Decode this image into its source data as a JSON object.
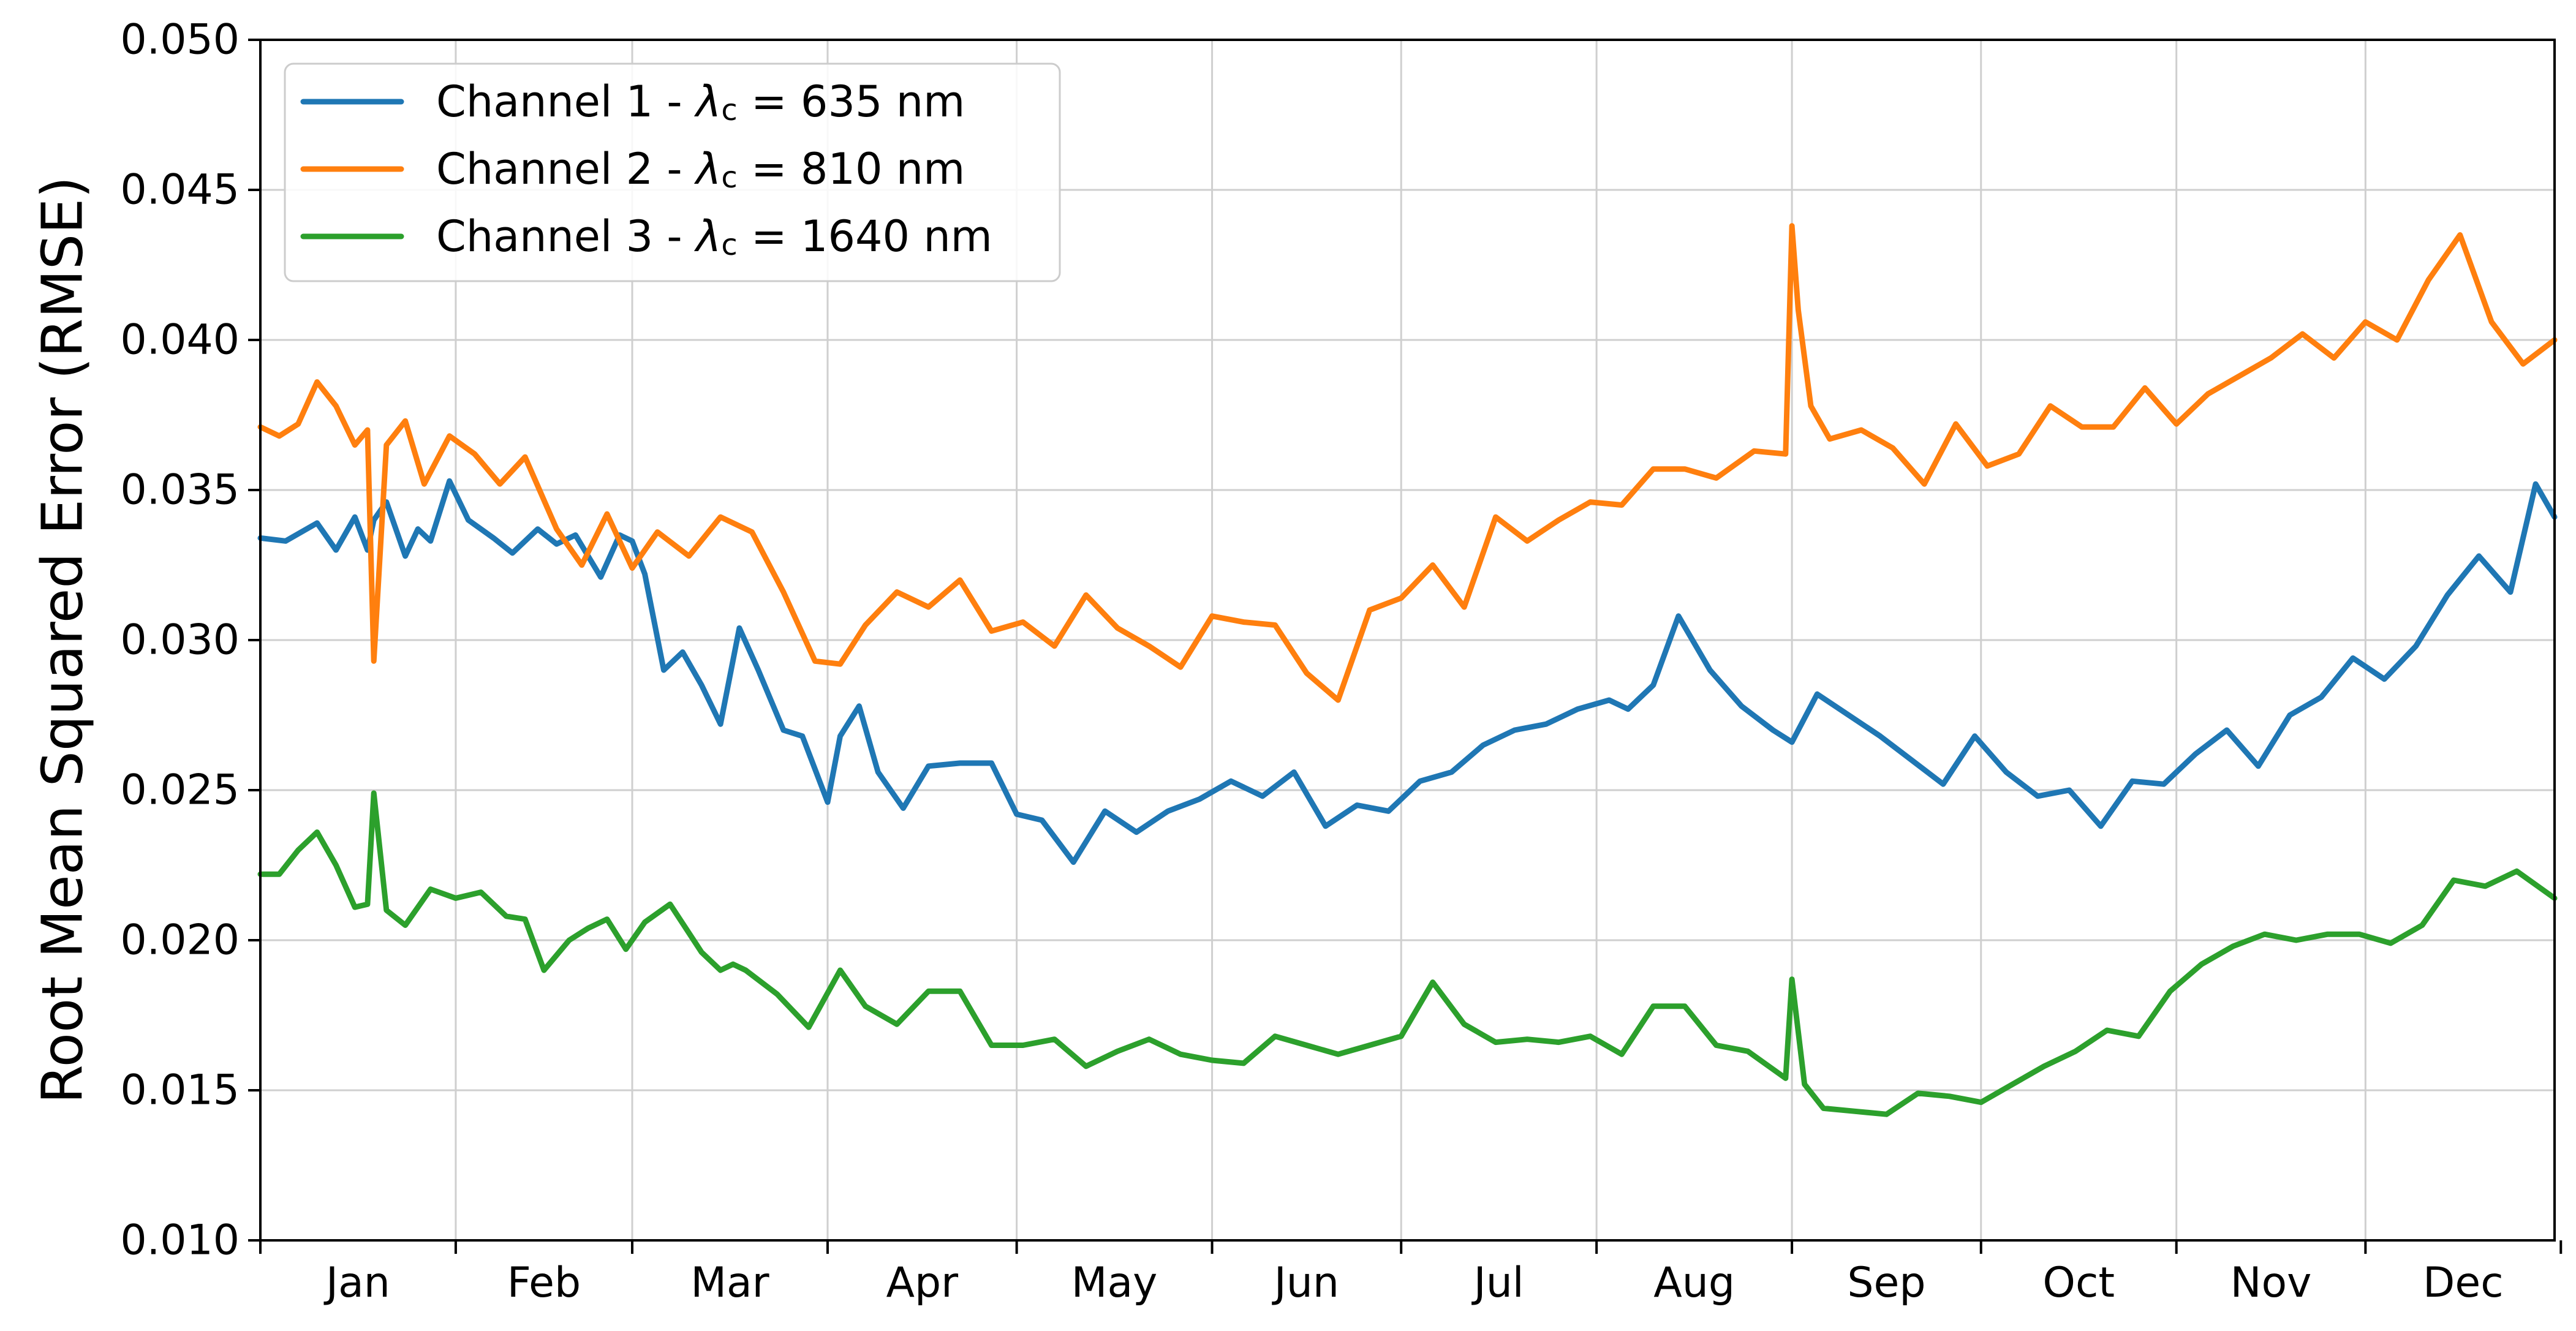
{
  "chart_data": {
    "type": "line",
    "ylabel": "Root Mean Squared Error (RMSE)",
    "xlabel": "",
    "ylim": [
      0.01,
      0.05
    ],
    "xlim": [
      "Jan 01",
      "Dec 31"
    ],
    "x_tick_labels": [
      "Jan",
      "Feb",
      "Mar",
      "Apr",
      "May",
      "Jun",
      "Jul",
      "Aug",
      "Sep",
      "Oct",
      "Nov",
      "Dec"
    ],
    "y_ticks": [
      0.01,
      0.015,
      0.02,
      0.025,
      0.03,
      0.035,
      0.04,
      0.045,
      0.05
    ],
    "y_tick_labels": [
      "0.010",
      "0.015",
      "0.020",
      "0.025",
      "0.030",
      "0.035",
      "0.040",
      "0.045",
      "0.050"
    ],
    "grid": true,
    "legend_position": "top-left",
    "series": [
      {
        "name": "Channel 1 - λc = 635 nm",
        "legend_prefix": "Channel 1 - ",
        "legend_suffix": " = 635 nm",
        "color": "#1f77b4",
        "x": [
          "Jan 01",
          "Jan 05",
          "Jan 10",
          "Jan 13",
          "Jan 16",
          "Jan 18",
          "Jan 19",
          "Jan 21",
          "Jan 24",
          "Jan 26",
          "Jan 28",
          "Jan 31",
          "Feb 03",
          "Feb 07",
          "Feb 10",
          "Feb 14",
          "Feb 17",
          "Feb 20",
          "Feb 24",
          "Feb 27",
          "Mar 01",
          "Mar 03",
          "Mar 06",
          "Mar 09",
          "Mar 12",
          "Mar 15",
          "Mar 18",
          "Mar 21",
          "Mar 25",
          "Mar 28",
          "Apr 01",
          "Apr 03",
          "Apr 06",
          "Apr 09",
          "Apr 13",
          "Apr 17",
          "Apr 22",
          "Apr 27",
          "May 01",
          "May 05",
          "May 10",
          "May 15",
          "May 20",
          "May 25",
          "May 30",
          "Jun 04",
          "Jun 09",
          "Jun 14",
          "Jun 19",
          "Jun 24",
          "Jun 29",
          "Jul 04",
          "Jul 09",
          "Jul 14",
          "Jul 19",
          "Jul 24",
          "Jul 29",
          "Aug 03",
          "Aug 06",
          "Aug 10",
          "Aug 14",
          "Aug 19",
          "Aug 24",
          "Aug 29",
          "Sep 01",
          "Sep 05",
          "Sep 10",
          "Sep 15",
          "Sep 20",
          "Sep 25",
          "Sep 30",
          "Oct 05",
          "Oct 10",
          "Oct 15",
          "Oct 20",
          "Oct 25",
          "Oct 30",
          "Nov 04",
          "Nov 09",
          "Nov 14",
          "Nov 19",
          "Nov 24",
          "Nov 29",
          "Dec 04",
          "Dec 09",
          "Dec 14",
          "Dec 19",
          "Dec 24",
          "Dec 28",
          "Dec 31"
        ],
        "values": [
          0.0334,
          0.0333,
          0.0339,
          0.033,
          0.0341,
          0.033,
          0.034,
          0.0346,
          0.0328,
          0.0337,
          0.0333,
          0.0353,
          0.034,
          0.0334,
          0.0329,
          0.0337,
          0.0332,
          0.0335,
          0.0321,
          0.0335,
          0.0333,
          0.0322,
          0.029,
          0.0296,
          0.0285,
          0.0272,
          0.0304,
          0.029,
          0.027,
          0.0268,
          0.0246,
          0.0268,
          0.0278,
          0.0256,
          0.0244,
          0.0258,
          0.0259,
          0.0259,
          0.0242,
          0.024,
          0.0226,
          0.0243,
          0.0236,
          0.0243,
          0.0247,
          0.0253,
          0.0248,
          0.0256,
          0.0238,
          0.0245,
          0.0243,
          0.0253,
          0.0256,
          0.0265,
          0.027,
          0.0272,
          0.0277,
          0.028,
          0.0277,
          0.0285,
          0.0308,
          0.029,
          0.0278,
          0.027,
          0.0266,
          0.0282,
          0.0275,
          0.0268,
          0.026,
          0.0252,
          0.0268,
          0.0256,
          0.0248,
          0.025,
          0.0238,
          0.0253,
          0.0252,
          0.0262,
          0.027,
          0.0258,
          0.0275,
          0.0281,
          0.0294,
          0.0287,
          0.0298,
          0.0315,
          0.0328,
          0.0316,
          0.0352,
          0.0341
        ]
      },
      {
        "name": "Channel 2 - λc = 810 nm",
        "legend_prefix": "Channel 2 - ",
        "legend_suffix": " = 810 nm",
        "color": "#ff7f0e",
        "x": [
          "Jan 01",
          "Jan 04",
          "Jan 07",
          "Jan 10",
          "Jan 13",
          "Jan 16",
          "Jan 18",
          "Jan 19",
          "Jan 21",
          "Jan 24",
          "Jan 27",
          "Jan 31",
          "Feb 04",
          "Feb 08",
          "Feb 12",
          "Feb 17",
          "Feb 21",
          "Feb 25",
          "Mar 01",
          "Mar 05",
          "Mar 10",
          "Mar 15",
          "Mar 20",
          "Mar 25",
          "Mar 30",
          "Apr 03",
          "Apr 07",
          "Apr 12",
          "Apr 17",
          "Apr 22",
          "Apr 27",
          "May 02",
          "May 07",
          "May 12",
          "May 17",
          "May 22",
          "May 27",
          "Jun 01",
          "Jun 06",
          "Jun 11",
          "Jun 16",
          "Jun 21",
          "Jun 26",
          "Jul 01",
          "Jul 06",
          "Jul 11",
          "Jul 16",
          "Jul 21",
          "Jul 26",
          "Jul 31",
          "Aug 05",
          "Aug 10",
          "Aug 15",
          "Aug 20",
          "Aug 26",
          "Aug 31",
          "Sep 01",
          "Sep 02",
          "Sep 04",
          "Sep 07",
          "Sep 12",
          "Sep 17",
          "Sep 22",
          "Sep 27",
          "Oct 02",
          "Oct 07",
          "Oct 12",
          "Oct 17",
          "Oct 22",
          "Oct 27",
          "Nov 01",
          "Nov 06",
          "Nov 11",
          "Nov 16",
          "Nov 21",
          "Nov 26",
          "Dec 01",
          "Dec 06",
          "Dec 11",
          "Dec 16",
          "Dec 21",
          "Dec 26",
          "Dec 31"
        ],
        "values": [
          0.0371,
          0.0368,
          0.0372,
          0.0386,
          0.0378,
          0.0365,
          0.037,
          0.0293,
          0.0365,
          0.0373,
          0.0352,
          0.0368,
          0.0362,
          0.0352,
          0.0361,
          0.0337,
          0.0325,
          0.0342,
          0.0324,
          0.0336,
          0.0328,
          0.0341,
          0.0336,
          0.0316,
          0.0293,
          0.0292,
          0.0305,
          0.0316,
          0.0311,
          0.032,
          0.0303,
          0.0306,
          0.0298,
          0.0315,
          0.0304,
          0.0298,
          0.0291,
          0.0308,
          0.0306,
          0.0305,
          0.0289,
          0.028,
          0.031,
          0.0314,
          0.0325,
          0.0311,
          0.0341,
          0.0333,
          0.034,
          0.0346,
          0.0345,
          0.0357,
          0.0357,
          0.0354,
          0.0363,
          0.0362,
          0.0438,
          0.041,
          0.0378,
          0.0367,
          0.037,
          0.0364,
          0.0352,
          0.0372,
          0.0358,
          0.0362,
          0.0378,
          0.0371,
          0.0371,
          0.0384,
          0.0372,
          0.0382,
          0.0388,
          0.0394,
          0.0402,
          0.0394,
          0.0406,
          0.04,
          0.042,
          0.0435,
          0.0406,
          0.0392,
          0.04
        ]
      },
      {
        "name": "Channel 3 - λc = 1640 nm",
        "legend_prefix": "Channel 3 - ",
        "legend_suffix": " = 1640 nm",
        "color": "#2ca02c",
        "x": [
          "Jan 01",
          "Jan 04",
          "Jan 07",
          "Jan 10",
          "Jan 13",
          "Jan 16",
          "Jan 18",
          "Jan 19",
          "Jan 21",
          "Jan 24",
          "Jan 28",
          "Feb 01",
          "Feb 05",
          "Feb 09",
          "Feb 12",
          "Feb 15",
          "Feb 19",
          "Feb 22",
          "Feb 25",
          "Feb 28",
          "Mar 03",
          "Mar 07",
          "Mar 12",
          "Mar 15",
          "Mar 17",
          "Mar 19",
          "Mar 24",
          "Mar 29",
          "Apr 03",
          "Apr 07",
          "Apr 12",
          "Apr 17",
          "Apr 22",
          "Apr 27",
          "May 02",
          "May 07",
          "May 12",
          "May 17",
          "May 22",
          "May 27",
          "Jun 01",
          "Jun 06",
          "Jun 11",
          "Jun 16",
          "Jun 21",
          "Jun 26",
          "Jul 01",
          "Jul 06",
          "Jul 11",
          "Jul 16",
          "Jul 21",
          "Jul 26",
          "Jul 31",
          "Aug 05",
          "Aug 10",
          "Aug 15",
          "Aug 20",
          "Aug 25",
          "Aug 31",
          "Sep 01",
          "Sep 03",
          "Sep 06",
          "Sep 11",
          "Sep 16",
          "Sep 21",
          "Sep 26",
          "Oct 01",
          "Oct 06",
          "Oct 11",
          "Oct 16",
          "Oct 21",
          "Oct 26",
          "Oct 31",
          "Nov 05",
          "Nov 10",
          "Nov 15",
          "Nov 20",
          "Nov 25",
          "Nov 30",
          "Dec 05",
          "Dec 10",
          "Dec 15",
          "Dec 20",
          "Dec 25",
          "Dec 31"
        ],
        "values": [
          0.0222,
          0.0222,
          0.023,
          0.0236,
          0.0225,
          0.0211,
          0.0212,
          0.0249,
          0.021,
          0.0205,
          0.0217,
          0.0214,
          0.0216,
          0.0208,
          0.0207,
          0.019,
          0.02,
          0.0204,
          0.0207,
          0.0197,
          0.0206,
          0.0212,
          0.0196,
          0.019,
          0.0192,
          0.019,
          0.0182,
          0.0171,
          0.019,
          0.0178,
          0.0172,
          0.0183,
          0.0183,
          0.0165,
          0.0165,
          0.0167,
          0.0158,
          0.0163,
          0.0167,
          0.0162,
          0.016,
          0.0159,
          0.0168,
          0.0165,
          0.0162,
          0.0165,
          0.0168,
          0.0186,
          0.0172,
          0.0166,
          0.0167,
          0.0166,
          0.0168,
          0.0162,
          0.0178,
          0.0178,
          0.0165,
          0.0163,
          0.0154,
          0.0187,
          0.0152,
          0.0144,
          0.0143,
          0.0142,
          0.0149,
          0.0148,
          0.0146,
          0.0152,
          0.0158,
          0.0163,
          0.017,
          0.0168,
          0.0183,
          0.0192,
          0.0198,
          0.0202,
          0.02,
          0.0202,
          0.0202,
          0.0199,
          0.0205,
          0.022,
          0.0218,
          0.0223,
          0.0214
        ]
      }
    ]
  }
}
